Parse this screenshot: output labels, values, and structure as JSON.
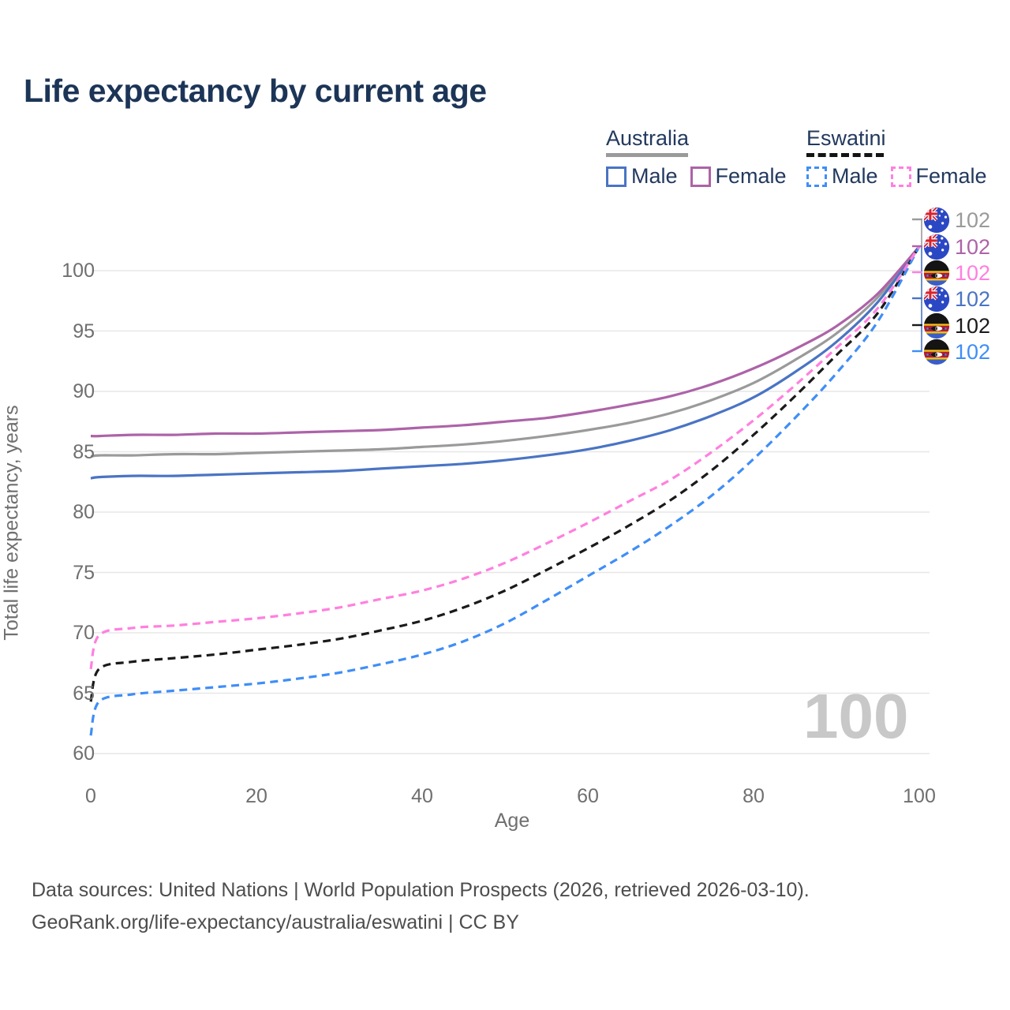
{
  "title": "Life expectancy by current age",
  "watermark": "100",
  "legend": {
    "groups": [
      {
        "label": "Australia",
        "line_style": "solid",
        "underline_color": "#9a9a9a",
        "items": [
          {
            "label": "Male",
            "color": "#4a74c4",
            "dashed": false
          },
          {
            "label": "Female",
            "color": "#ad63a8",
            "dashed": false
          }
        ]
      },
      {
        "label": "Eswatini",
        "line_style": "dashed",
        "underline_color": "#141414",
        "items": [
          {
            "label": "Male",
            "color": "#3f8ef7",
            "dashed": true
          },
          {
            "label": "Female",
            "color": "#ff80df",
            "dashed": true
          }
        ]
      }
    ]
  },
  "end_labels": [
    {
      "flag": "australia",
      "value": "102",
      "color": "#9a9a9a"
    },
    {
      "flag": "australia",
      "value": "102",
      "color": "#ad63a8"
    },
    {
      "flag": "eswatini",
      "value": "102",
      "color": "#ff80df"
    },
    {
      "flag": "australia",
      "value": "102",
      "color": "#4a74c4"
    },
    {
      "flag": "eswatini",
      "value": "102",
      "color": "#1a1a1a"
    },
    {
      "flag": "eswatini",
      "value": "102",
      "color": "#3f8ef7"
    }
  ],
  "footer": {
    "line1": "Data sources: United Nations | World Population Prospects (2026, retrieved 2026-03-10).",
    "line2": "GeoRank.org/life-expectancy/australia/eswatini | CC BY"
  },
  "chart_data": {
    "type": "line",
    "title": "Life expectancy by current age",
    "xlabel": "Age",
    "ylabel": "Total life expectancy, years",
    "xlim": [
      0,
      100
    ],
    "ylim": [
      58.5,
      103
    ],
    "xticks": [
      0,
      20,
      40,
      60,
      80,
      100
    ],
    "yticks": [
      60,
      65,
      70,
      75,
      80,
      85,
      90,
      95,
      100
    ],
    "grid": "horizontal",
    "legend_position": "top-right",
    "x": [
      0,
      1,
      5,
      10,
      15,
      20,
      25,
      30,
      35,
      40,
      45,
      50,
      55,
      60,
      65,
      70,
      75,
      80,
      85,
      90,
      95,
      100
    ],
    "series": [
      {
        "name": "Australia (both sexes)",
        "country": "Australia",
        "sex": "Total",
        "line": "solid",
        "color": "#9a9a9a",
        "values": [
          84.6,
          84.7,
          84.7,
          84.8,
          84.8,
          84.9,
          85.0,
          85.1,
          85.2,
          85.4,
          85.6,
          85.9,
          86.3,
          86.8,
          87.4,
          88.2,
          89.3,
          90.7,
          92.6,
          94.8,
          97.8,
          102
        ]
      },
      {
        "name": "Australia Male",
        "country": "Australia",
        "sex": "Male",
        "line": "solid",
        "color": "#4a74c4",
        "values": [
          82.8,
          82.9,
          83.0,
          83.0,
          83.1,
          83.2,
          83.3,
          83.4,
          83.6,
          83.8,
          84.0,
          84.3,
          84.7,
          85.2,
          85.9,
          86.8,
          88.0,
          89.5,
          91.6,
          94.1,
          97.4,
          102
        ]
      },
      {
        "name": "Australia Female",
        "country": "Australia",
        "sex": "Female",
        "line": "solid",
        "color": "#ad63a8",
        "values": [
          86.3,
          86.3,
          86.4,
          86.4,
          86.5,
          86.5,
          86.6,
          86.7,
          86.8,
          87.0,
          87.2,
          87.5,
          87.8,
          88.3,
          88.9,
          89.6,
          90.6,
          91.9,
          93.5,
          95.4,
          98.1,
          102
        ]
      },
      {
        "name": "Eswatini (both sexes)",
        "country": "Eswatini",
        "sex": "Total",
        "line": "dashed",
        "color": "#1a1a1a",
        "values": [
          64.3,
          67.0,
          67.6,
          67.9,
          68.2,
          68.6,
          69.0,
          69.5,
          70.2,
          71.0,
          72.1,
          73.5,
          75.2,
          77.0,
          78.9,
          81.0,
          83.5,
          86.4,
          89.6,
          93.0,
          96.5,
          102
        ]
      },
      {
        "name": "Eswatini Male",
        "country": "Eswatini",
        "sex": "Male",
        "line": "dashed",
        "color": "#3f8ef7",
        "values": [
          61.5,
          64.3,
          64.9,
          65.2,
          65.5,
          65.8,
          66.2,
          66.7,
          67.4,
          68.2,
          69.3,
          70.8,
          72.7,
          74.7,
          76.7,
          78.9,
          81.4,
          84.4,
          87.8,
          91.5,
          95.8,
          102
        ]
      },
      {
        "name": "Eswatini Female",
        "country": "Eswatini",
        "sex": "Female",
        "line": "dashed",
        "color": "#ff80df",
        "values": [
          67.0,
          69.8,
          70.4,
          70.6,
          70.9,
          71.2,
          71.6,
          72.1,
          72.8,
          73.5,
          74.5,
          75.8,
          77.4,
          79.1,
          80.9,
          82.7,
          85.0,
          87.6,
          90.5,
          93.6,
          96.9,
          102
        ]
      }
    ]
  }
}
